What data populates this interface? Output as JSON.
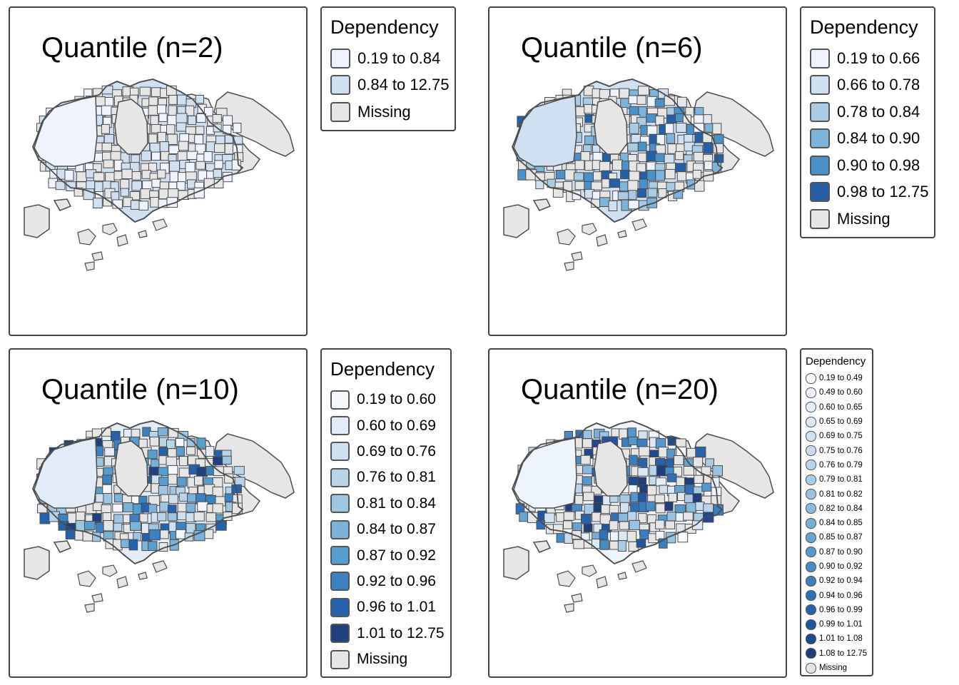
{
  "legend_title": "Dependency",
  "missing_label": "Missing",
  "colors": {
    "missing": "#e6e6e6",
    "border": "#4d4d4d",
    "ramp": [
      "#f7fbff",
      "#deebf7",
      "#c6dbef",
      "#9ecae1",
      "#6baed6",
      "#4292c6",
      "#2171b5",
      "#08519c",
      "#08306b"
    ]
  },
  "panels": [
    {
      "title": "Quantile (n=2)",
      "classes": [
        {
          "label": "0.19 to 0.84",
          "color": "#eef3fd"
        },
        {
          "label": "0.84 to 12.75",
          "color": "#cfe0f3"
        }
      ]
    },
    {
      "title": "Quantile (n=6)",
      "classes": [
        {
          "label": "0.19 to 0.66",
          "color": "#eef3fd"
        },
        {
          "label": "0.66 to 0.78",
          "color": "#cfe0f3"
        },
        {
          "label": "0.78 to 0.84",
          "color": "#a9cce4"
        },
        {
          "label": "0.84 to 0.90",
          "color": "#7cb5db"
        },
        {
          "label": "0.90 to 0.98",
          "color": "#4a91c9"
        },
        {
          "label": "0.98 to 12.75",
          "color": "#2360a8"
        }
      ]
    },
    {
      "title": "Quantile (n=10)",
      "classes": [
        {
          "label": "0.19 to 0.60",
          "color": "#f4f8fd"
        },
        {
          "label": "0.60 to 0.69",
          "color": "#e2ecf8"
        },
        {
          "label": "0.69 to 0.76",
          "color": "#cfe0f3"
        },
        {
          "label": "0.76 to 0.81",
          "color": "#b8d5ea"
        },
        {
          "label": "0.81 to 0.84",
          "color": "#9cc6e2"
        },
        {
          "label": "0.84 to 0.87",
          "color": "#7ab3da"
        },
        {
          "label": "0.87 to 0.92",
          "color": "#579ed0"
        },
        {
          "label": "0.92 to 0.96",
          "color": "#3a82c2"
        },
        {
          "label": "0.96 to 1.01",
          "color": "#2562ad"
        },
        {
          "label": "1.01 to 12.75",
          "color": "#1f417f"
        }
      ]
    },
    {
      "title": "Quantile (n=20)",
      "classes": [
        {
          "label": "0.19 to 0.49",
          "color": "#f7fafe"
        },
        {
          "label": "0.49 to 0.60",
          "color": "#eef4fc"
        },
        {
          "label": "0.60 to 0.65",
          "color": "#e5eef9"
        },
        {
          "label": "0.65 to 0.69",
          "color": "#dbe8f6"
        },
        {
          "label": "0.69 to 0.75",
          "color": "#d1e2f3"
        },
        {
          "label": "0.75 to 0.76",
          "color": "#c6dbef"
        },
        {
          "label": "0.76 to 0.79",
          "color": "#b9d4ec"
        },
        {
          "label": "0.79 to 0.81",
          "color": "#a9cce6"
        },
        {
          "label": "0.81 to 0.82",
          "color": "#99c3e2"
        },
        {
          "label": "0.82 to 0.84",
          "color": "#88b9de"
        },
        {
          "label": "0.84 to 0.85",
          "color": "#77afd9"
        },
        {
          "label": "0.85 to 0.87",
          "color": "#66a4d4"
        },
        {
          "label": "0.87 to 0.90",
          "color": "#5598cd"
        },
        {
          "label": "0.90 to 0.92",
          "color": "#468bc6"
        },
        {
          "label": "0.92 to 0.94",
          "color": "#3a7ebf"
        },
        {
          "label": "0.94 to 0.96",
          "color": "#2f70b6"
        },
        {
          "label": "0.96 to 0.99",
          "color": "#2763ac"
        },
        {
          "label": "0.99 to 1.01",
          "color": "#21559f"
        },
        {
          "label": "1.01 to 1.08",
          "color": "#1f4a8f"
        },
        {
          "label": "1.08 to 12.75",
          "color": "#1f3f7a"
        }
      ]
    }
  ]
}
